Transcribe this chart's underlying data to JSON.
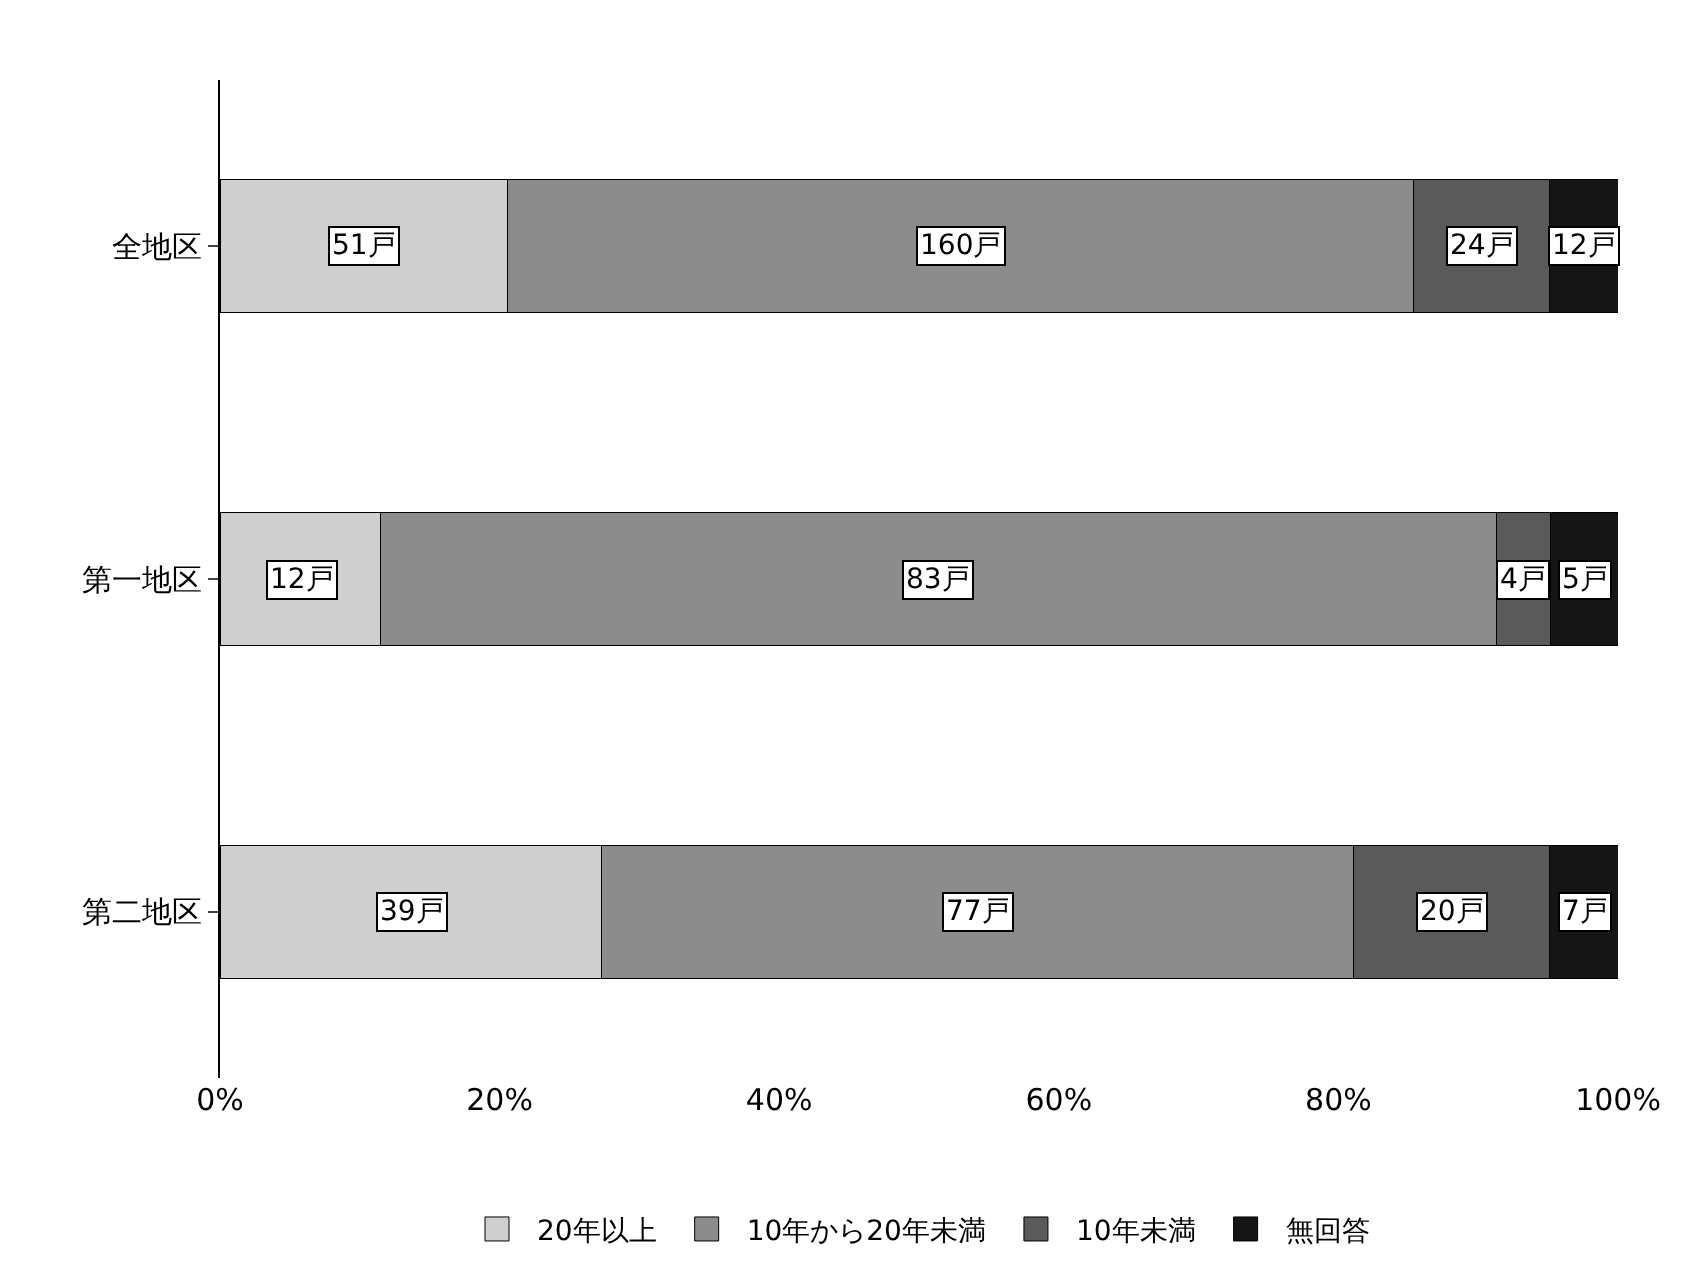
{
  "chart_data": {
    "type": "bar",
    "orientation": "horizontal",
    "stacked": true,
    "categories": [
      "全地区",
      "第一地区",
      "第二地区"
    ],
    "series": [
      {
        "name": "20年以上",
        "color": "#cfcfcf",
        "values": [
          20.6,
          11.5,
          27.3
        ]
      },
      {
        "name": "10年から20年未満",
        "color": "#8c8c8c",
        "values": [
          64.8,
          79.8,
          53.8
        ]
      },
      {
        "name": "10年未満",
        "color": "#5a5a5a",
        "values": [
          9.7,
          3.9,
          14.0
        ]
      },
      {
        "name": "無回答",
        "color": "#151515",
        "values": [
          4.9,
          4.8,
          4.9
        ]
      }
    ],
    "annotations": [
      {
        "text": "51戸",
        "x": 10.3,
        "y": "全地区"
      },
      {
        "text": "160戸",
        "x": 53.0,
        "y": "全地区"
      },
      {
        "text": "24戸",
        "x": 90.2,
        "y": "全地区"
      },
      {
        "text": "12戸",
        "x": 97.6,
        "y": "全地区"
      },
      {
        "text": "12戸",
        "x": 5.8,
        "y": "第一地区"
      },
      {
        "text": "83戸",
        "x": 51.4,
        "y": "第一地区"
      },
      {
        "text": "4戸",
        "x": 93.2,
        "y": "第一地区"
      },
      {
        "text": "5戸",
        "x": 97.6,
        "y": "第一地区"
      },
      {
        "text": "39戸",
        "x": 13.7,
        "y": "第二地区"
      },
      {
        "text": "77戸",
        "x": 54.2,
        "y": "第二地区"
      },
      {
        "text": "20戸",
        "x": 88.1,
        "y": "第二地区"
      },
      {
        "text": "7戸",
        "x": 97.6,
        "y": "第二地区"
      }
    ],
    "xlim": [
      0,
      100
    ],
    "xticks": [
      {
        "value": 0,
        "label": "0%"
      },
      {
        "value": 20,
        "label": "20%"
      },
      {
        "value": 40,
        "label": "40%"
      },
      {
        "value": 60,
        "label": "60%"
      },
      {
        "value": 80,
        "label": "80%"
      },
      {
        "value": 100,
        "label": "100%"
      }
    ],
    "legend": "bottom"
  }
}
